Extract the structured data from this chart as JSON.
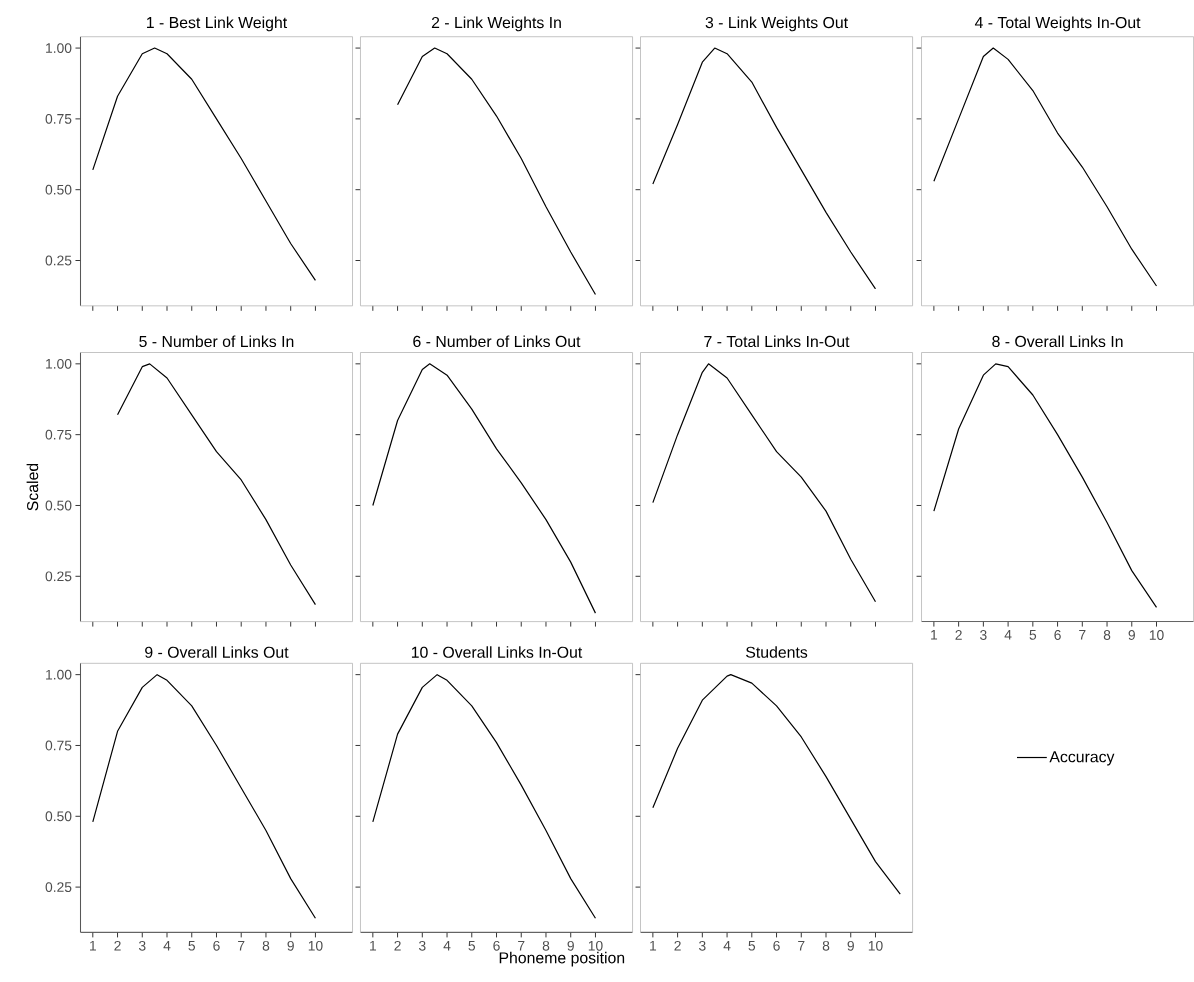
{
  "chart_data": [
    {
      "type": "line",
      "title": "1 - Best Link Weight",
      "x": [
        1,
        2,
        3,
        3.5,
        4,
        5,
        6,
        7,
        8,
        9,
        10
      ],
      "xlim": [
        0.5,
        11.5
      ],
      "ylim": [
        0.09,
        1.04
      ],
      "xticks": [
        1,
        2,
        3,
        4,
        5,
        6,
        7,
        8,
        9,
        10
      ],
      "yticks": [
        {
          "value": 0.25,
          "label": "0.25"
        },
        {
          "value": 0.5,
          "label": "0.50"
        },
        {
          "value": 0.75,
          "label": "0.75"
        },
        {
          "value": 1.0,
          "label": "1.00"
        }
      ],
      "tick_labels": "y",
      "series": [
        {
          "color": "#000000",
          "values": [
            0.57,
            0.83,
            0.98,
            1.0,
            0.98,
            0.89,
            0.75,
            0.61,
            0.46,
            0.31,
            0.18
          ]
        }
      ]
    },
    {
      "type": "line",
      "title": "2 - Link Weights In",
      "x": [
        2,
        3,
        3.5,
        4,
        5,
        6,
        7,
        8,
        9,
        10
      ],
      "xlim": [
        0.5,
        11.5
      ],
      "ylim": [
        0.09,
        1.04
      ],
      "xticks": [
        1,
        2,
        3,
        4,
        5,
        6,
        7,
        8,
        9,
        10
      ],
      "yticks": [
        0.25,
        0.5,
        0.75,
        1.0
      ],
      "tick_labels": false,
      "series": [
        {
          "color": "#000000",
          "values": [
            0.8,
            0.97,
            1.0,
            0.98,
            0.89,
            0.76,
            0.61,
            0.44,
            0.28,
            0.13
          ]
        }
      ]
    },
    {
      "type": "line",
      "title": "3 - Link Weights Out",
      "x": [
        1,
        2,
        3,
        3.5,
        4,
        5,
        6,
        7,
        8,
        9,
        10
      ],
      "xlim": [
        0.5,
        11.5
      ],
      "ylim": [
        0.09,
        1.04
      ],
      "xticks": [
        1,
        2,
        3,
        4,
        5,
        6,
        7,
        8,
        9,
        10
      ],
      "yticks": [
        0.25,
        0.5,
        0.75,
        1.0
      ],
      "tick_labels": false,
      "series": [
        {
          "color": "#000000",
          "values": [
            0.52,
            0.73,
            0.95,
            1.0,
            0.98,
            0.88,
            0.72,
            0.57,
            0.42,
            0.28,
            0.15
          ]
        }
      ]
    },
    {
      "type": "line",
      "title": "4 - Total Weights In-Out",
      "x": [
        1,
        2,
        3,
        3.4,
        4,
        5,
        6,
        7,
        8,
        9,
        10
      ],
      "xlim": [
        0.5,
        11.5
      ],
      "ylim": [
        0.09,
        1.04
      ],
      "xticks": [
        1,
        2,
        3,
        4,
        5,
        6,
        7,
        8,
        9,
        10
      ],
      "yticks": [
        0.25,
        0.5,
        0.75,
        1.0
      ],
      "tick_labels": false,
      "series": [
        {
          "color": "#000000",
          "values": [
            0.53,
            0.75,
            0.97,
            1.0,
            0.96,
            0.85,
            0.7,
            0.58,
            0.44,
            0.29,
            0.16
          ]
        }
      ]
    },
    {
      "type": "line",
      "title": "5 - Number of Links In",
      "ylabel": "Scaled",
      "x": [
        2,
        3,
        3.3,
        4,
        5,
        6,
        7,
        8,
        9,
        10
      ],
      "xlim": [
        0.5,
        11.5
      ],
      "ylim": [
        0.09,
        1.04
      ],
      "xticks": [
        1,
        2,
        3,
        4,
        5,
        6,
        7,
        8,
        9,
        10
      ],
      "yticks": [
        {
          "value": 0.25,
          "label": "0.25"
        },
        {
          "value": 0.5,
          "label": "0.50"
        },
        {
          "value": 0.75,
          "label": "0.75"
        },
        {
          "value": 1.0,
          "label": "1.00"
        }
      ],
      "tick_labels": "y",
      "series": [
        {
          "color": "#000000",
          "values": [
            0.82,
            0.99,
            1.0,
            0.95,
            0.82,
            0.69,
            0.59,
            0.45,
            0.29,
            0.15
          ]
        }
      ]
    },
    {
      "type": "line",
      "title": "6 - Number of Links Out",
      "x": [
        1,
        2,
        3,
        3.3,
        4,
        5,
        6,
        7,
        8,
        9,
        10
      ],
      "xlim": [
        0.5,
        11.5
      ],
      "ylim": [
        0.09,
        1.04
      ],
      "xticks": [
        1,
        2,
        3,
        4,
        5,
        6,
        7,
        8,
        9,
        10
      ],
      "yticks": [
        0.25,
        0.5,
        0.75,
        1.0
      ],
      "tick_labels": false,
      "series": [
        {
          "color": "#000000",
          "values": [
            0.5,
            0.8,
            0.98,
            1.0,
            0.96,
            0.84,
            0.7,
            0.58,
            0.45,
            0.3,
            0.12
          ]
        }
      ]
    },
    {
      "type": "line",
      "title": "7 - Total Links In-Out",
      "x": [
        1,
        2,
        3,
        3.25,
        4,
        5,
        6,
        7,
        8,
        9,
        10
      ],
      "xlim": [
        0.5,
        11.5
      ],
      "ylim": [
        0.09,
        1.04
      ],
      "xticks": [
        1,
        2,
        3,
        4,
        5,
        6,
        7,
        8,
        9,
        10
      ],
      "yticks": [
        0.25,
        0.5,
        0.75,
        1.0
      ],
      "tick_labels": false,
      "series": [
        {
          "color": "#000000",
          "values": [
            0.51,
            0.75,
            0.97,
            1.0,
            0.95,
            0.82,
            0.69,
            0.6,
            0.48,
            0.31,
            0.16
          ]
        }
      ]
    },
    {
      "type": "line",
      "title": "8 - Overall Links In",
      "x": [
        1,
        2,
        3,
        3.5,
        4,
        5,
        6,
        7,
        8,
        9,
        10
      ],
      "xlim": [
        0.5,
        11.5
      ],
      "ylim": [
        0.09,
        1.04
      ],
      "xticks": [
        1,
        2,
        3,
        4,
        5,
        6,
        7,
        8,
        9,
        10
      ],
      "yticks": [
        0.25,
        0.5,
        0.75,
        1.0
      ],
      "tick_labels": "x",
      "series": [
        {
          "color": "#000000",
          "values": [
            0.48,
            0.77,
            0.96,
            1.0,
            0.99,
            0.89,
            0.75,
            0.6,
            0.44,
            0.27,
            0.14
          ]
        }
      ]
    },
    {
      "type": "line",
      "title": "9 - Overall Links Out",
      "x": [
        1,
        2,
        3,
        3.6,
        4,
        5,
        6,
        7,
        8,
        9,
        10
      ],
      "xlim": [
        0.5,
        11.5
      ],
      "ylim": [
        0.09,
        1.04
      ],
      "xticks": [
        1,
        2,
        3,
        4,
        5,
        6,
        7,
        8,
        9,
        10
      ],
      "yticks": [
        {
          "value": 0.25,
          "label": "0.25"
        },
        {
          "value": 0.5,
          "label": "0.50"
        },
        {
          "value": 0.75,
          "label": "0.75"
        },
        {
          "value": 1.0,
          "label": "1.00"
        }
      ],
      "series": [
        {
          "color": "#000000",
          "values": [
            0.48,
            0.8,
            0.955,
            1.0,
            0.98,
            0.89,
            0.75,
            0.6,
            0.45,
            0.28,
            0.14
          ]
        }
      ]
    },
    {
      "type": "line",
      "title": "10 - Overall Links In-Out",
      "xlabel": "Phoneme position",
      "x": [
        1,
        2,
        3,
        3.6,
        4,
        5,
        6,
        7,
        8,
        9,
        10
      ],
      "xlim": [
        0.5,
        11.5
      ],
      "ylim": [
        0.09,
        1.04
      ],
      "xticks": [
        1,
        2,
        3,
        4,
        5,
        6,
        7,
        8,
        9,
        10
      ],
      "yticks": [
        0.25,
        0.5,
        0.75,
        1.0
      ],
      "tick_labels": "x",
      "series": [
        {
          "color": "#000000",
          "values": [
            0.48,
            0.79,
            0.955,
            1.0,
            0.98,
            0.89,
            0.76,
            0.61,
            0.45,
            0.28,
            0.14
          ]
        }
      ]
    },
    {
      "type": "line",
      "title": "Students",
      "x": [
        1,
        2,
        3,
        4,
        4.15,
        5,
        6,
        7,
        8,
        9,
        10,
        11
      ],
      "xlim": [
        0.5,
        11.5
      ],
      "ylim": [
        0.09,
        1.04
      ],
      "xticks": [
        1,
        2,
        3,
        4,
        5,
        6,
        7,
        8,
        9,
        10
      ],
      "yticks": [
        0.25,
        0.5,
        0.75,
        1.0
      ],
      "tick_labels": "x",
      "legend": "right",
      "series": [
        {
          "name": "Accuracy",
          "color": "#000000",
          "values": [
            0.53,
            0.74,
            0.91,
            0.995,
            1.0,
            0.97,
            0.89,
            0.78,
            0.64,
            0.49,
            0.34,
            0.225
          ]
        }
      ]
    }
  ]
}
